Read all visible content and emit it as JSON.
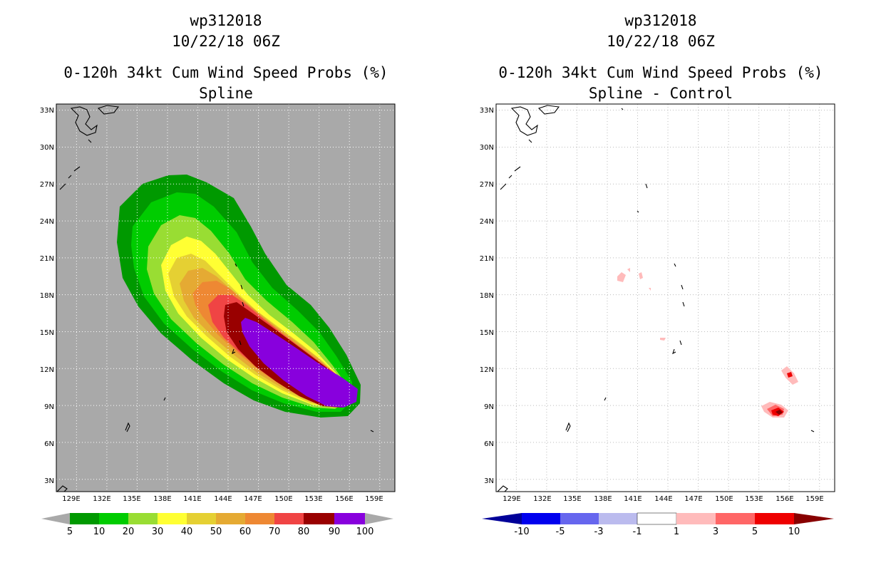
{
  "panels": [
    {
      "id": "left",
      "title_line1": "wp312018",
      "title_line2": "10/22/18 06Z",
      "title_line3": "0-120h 34kt Cum Wind Speed Probs (%)",
      "title_line4": "Spline"
    },
    {
      "id": "right",
      "title_line1": "wp312018",
      "title_line2": "10/22/18 06Z",
      "title_line3": "0-120h 34kt Cum Wind Speed Probs (%)",
      "title_line4": "Spline - Control"
    }
  ],
  "colors": {
    "background_map": "#a9a9a9",
    "left_scale": [
      "#009900",
      "#00cc00",
      "#99dd33",
      "#ffff33",
      "#e5d033",
      "#e5aa33",
      "#ee8833",
      "#f04444",
      "#990000",
      "#8800dd"
    ],
    "right_scale": [
      "#000099",
      "#0000ee",
      "#6666ee",
      "#bbbbee",
      "#ffffff",
      "#ffbbbb",
      "#ff6666",
      "#ee0000",
      "#880000"
    ]
  },
  "chart_data": [
    {
      "type": "heatmap",
      "title": "0-120h 34kt Cum Wind Speed Probs (%) — Spline",
      "xlabel": "",
      "ylabel": "",
      "x_ticks": [
        "129E",
        "132E",
        "135E",
        "138E",
        "141E",
        "144E",
        "147E",
        "150E",
        "153E",
        "156E",
        "159E"
      ],
      "y_ticks": [
        "3N",
        "6N",
        "9N",
        "12N",
        "15N",
        "18N",
        "21N",
        "24N",
        "27N",
        "30N",
        "33N"
      ],
      "xlim": [
        127,
        160.5
      ],
      "ylim": [
        2,
        33.5
      ],
      "grid": true,
      "colorbar_labels": [
        "5",
        "10",
        "20",
        "30",
        "40",
        "50",
        "60",
        "70",
        "80",
        "90",
        "100"
      ],
      "colorbar_values": [
        5,
        10,
        20,
        30,
        40,
        50,
        60,
        70,
        80,
        90,
        100
      ],
      "contour_levels": [
        5,
        10,
        20,
        30,
        40,
        50,
        60,
        70,
        80,
        90
      ]
    },
    {
      "type": "heatmap",
      "title": "0-120h 34kt Cum Wind Speed Probs (%) — Spline - Control",
      "xlabel": "",
      "ylabel": "",
      "x_ticks": [
        "129E",
        "132E",
        "135E",
        "138E",
        "141E",
        "144E",
        "147E",
        "150E",
        "153E",
        "156E",
        "159E"
      ],
      "y_ticks": [
        "3N",
        "6N",
        "9N",
        "12N",
        "15N",
        "18N",
        "21N",
        "24N",
        "27N",
        "30N",
        "33N"
      ],
      "xlim": [
        127,
        160.5
      ],
      "ylim": [
        2,
        33.5
      ],
      "grid": true,
      "colorbar_labels": [
        "-10",
        "-5",
        "-3",
        "-1",
        "1",
        "3",
        "5",
        "10"
      ],
      "colorbar_values": [
        -10,
        -5,
        -3,
        -1,
        1,
        3,
        5,
        10
      ],
      "diff_spots": [
        {
          "lon": 155.5,
          "lat": 8.5,
          "value": 5
        },
        {
          "lon": 156.1,
          "lat": 11.5,
          "value": 3
        },
        {
          "lon": 140.2,
          "lat": 19.4,
          "value": 1
        }
      ]
    }
  ]
}
